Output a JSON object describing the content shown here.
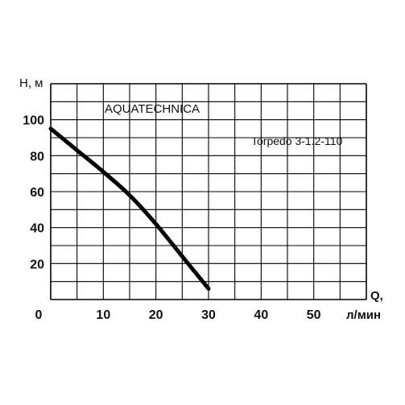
{
  "chart_data": {
    "type": "line",
    "title": "AQUATECHNICA",
    "ylabel": "H, м",
    "xlabel_top": "Q,",
    "xlabel_unit": "л/мин",
    "xlim": [
      0,
      60
    ],
    "ylim": [
      0,
      120
    ],
    "x_ticks": [
      "0",
      "10",
      "20",
      "30",
      "40",
      "50"
    ],
    "y_ticks": [
      "20",
      "40",
      "60",
      "80",
      "100"
    ],
    "grid": true,
    "series": [
      {
        "name": "Torpedo 3-1.2-110",
        "x": [
          0,
          5,
          10,
          15,
          20,
          25,
          30
        ],
        "y": [
          95,
          83,
          71,
          58,
          42,
          24,
          6
        ]
      }
    ],
    "colors": {
      "line": "#000000",
      "grid": "#000000",
      "text": "#111111"
    }
  }
}
